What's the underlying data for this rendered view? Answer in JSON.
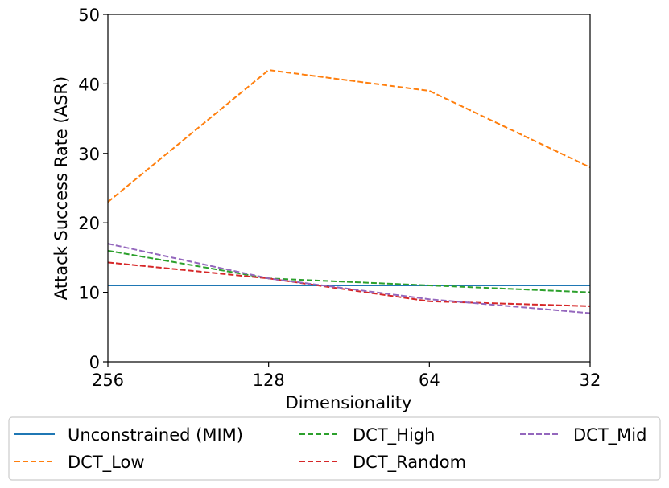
{
  "chart_data": {
    "type": "line",
    "title": "",
    "xlabel": "Dimensionality",
    "ylabel": "Attack Success Rate (ASR)",
    "categories": [
      "256",
      "128",
      "64",
      "32"
    ],
    "ylim": [
      0,
      50
    ],
    "yticks": [
      0,
      10,
      20,
      30,
      40,
      50
    ],
    "grid": false,
    "legend_position": "bottom",
    "series": [
      {
        "name": "Unconstrained (MIM)",
        "values": [
          11,
          11,
          11,
          11
        ],
        "color": "#1f77b4",
        "dashed": false
      },
      {
        "name": "DCT_Low",
        "values": [
          23,
          42,
          39,
          28
        ],
        "color": "#ff7f0e",
        "dashed": true
      },
      {
        "name": "DCT_High",
        "values": [
          16,
          12,
          11,
          10
        ],
        "color": "#2ca02c",
        "dashed": true
      },
      {
        "name": "DCT_Random",
        "values": [
          14.3,
          12,
          8.7,
          8
        ],
        "color": "#d62728",
        "dashed": true
      },
      {
        "name": "DCT_Mid",
        "values": [
          17,
          12,
          9,
          7
        ],
        "color": "#9467bd",
        "dashed": true
      }
    ]
  }
}
